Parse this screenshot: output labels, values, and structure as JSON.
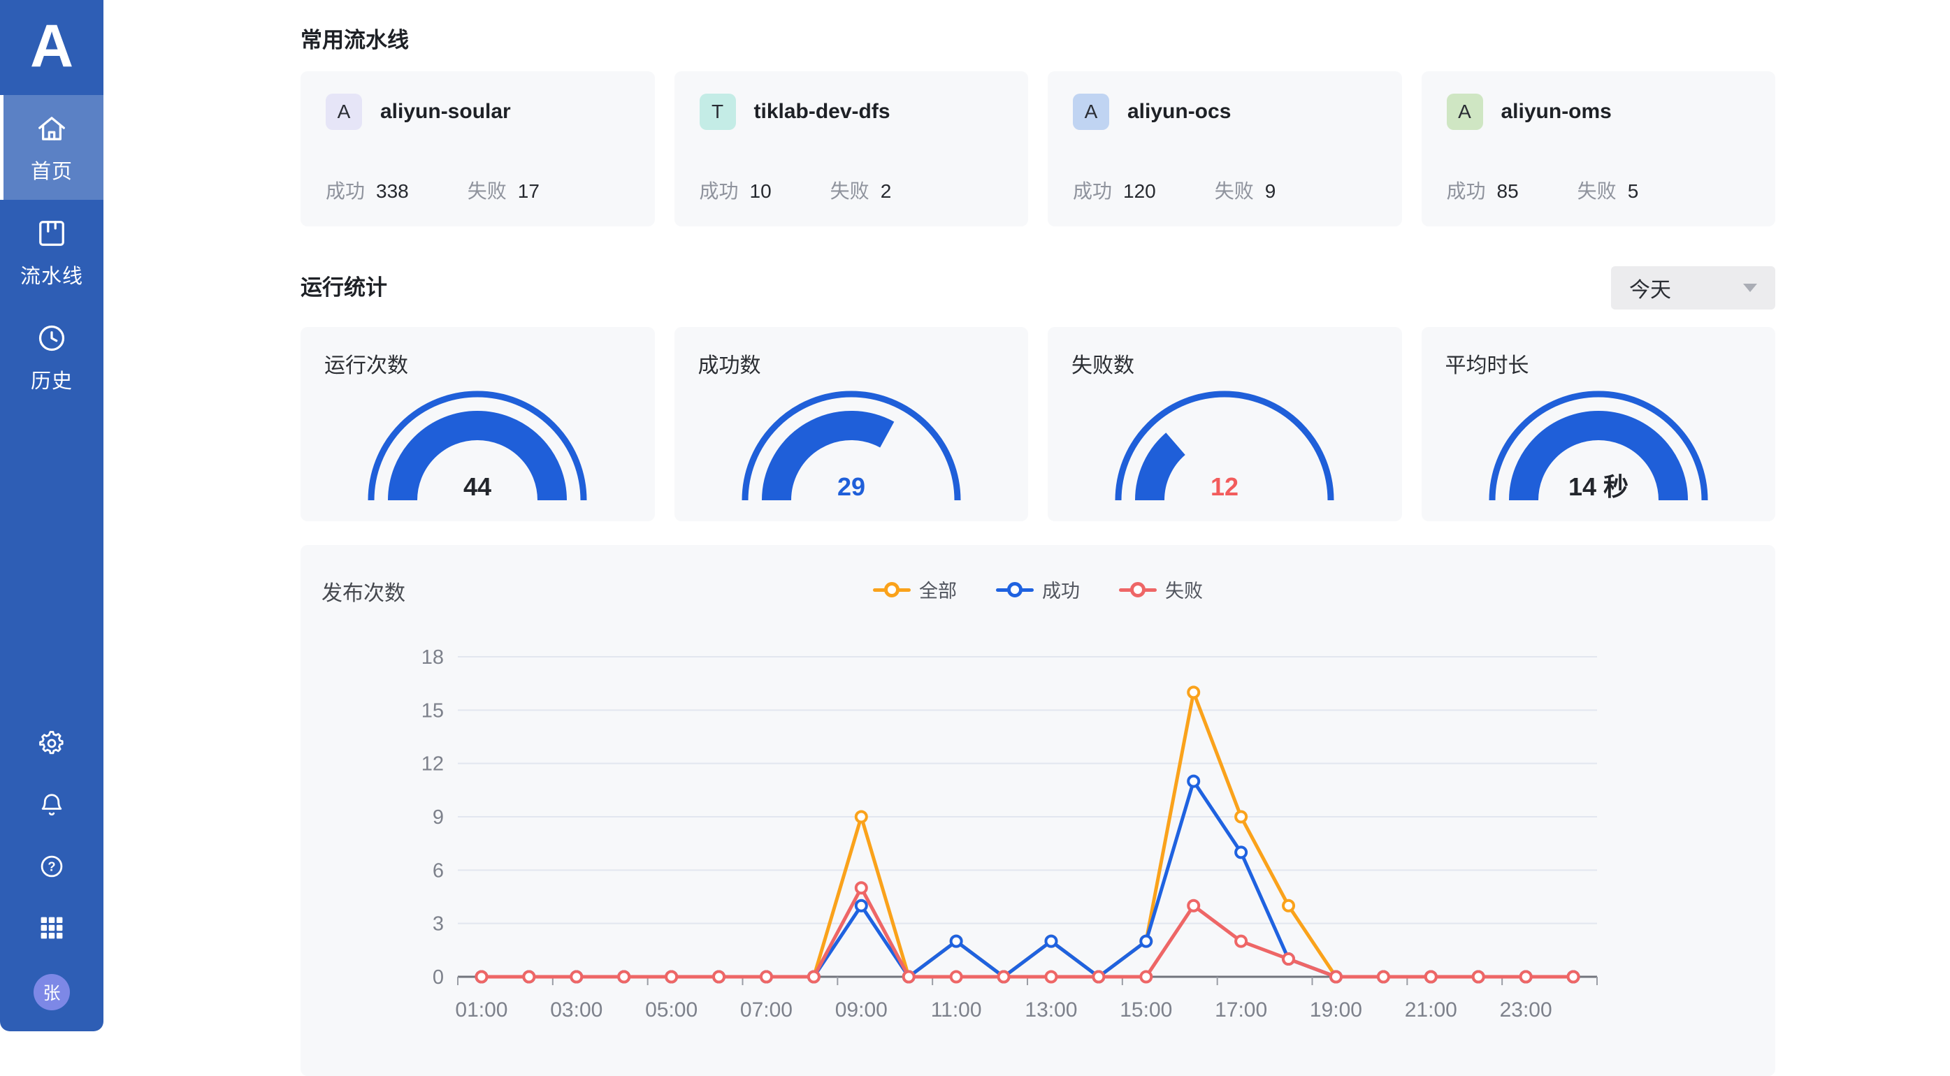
{
  "sidebar": {
    "logo_letter": "A",
    "items": [
      {
        "label": "首页",
        "active": true
      },
      {
        "label": "流水线",
        "active": false
      },
      {
        "label": "历史",
        "active": false
      }
    ],
    "avatar_text": "张"
  },
  "pipelines_section": {
    "title": "常用流水线",
    "success_label": "成功",
    "fail_label": "失败",
    "cards": [
      {
        "initial": "A",
        "name": "aliyun-soular",
        "success": "338",
        "fail": "17",
        "badge_bg": "#e6e5f7"
      },
      {
        "initial": "T",
        "name": "tiklab-dev-dfs",
        "success": "10",
        "fail": "2",
        "badge_bg": "#c4ece6"
      },
      {
        "initial": "A",
        "name": "aliyun-ocs",
        "success": "120",
        "fail": "9",
        "badge_bg": "#c0d4f2"
      },
      {
        "initial": "A",
        "name": "aliyun-oms",
        "success": "85",
        "fail": "5",
        "badge_bg": "#cfe6c3"
      }
    ]
  },
  "stats_section": {
    "title": "运行统计",
    "range_selected": "今天",
    "gauge_color": "#1f5fd9",
    "gauges": [
      {
        "label": "运行次数",
        "display": "44",
        "fraction": 1,
        "value_color": "#23262c"
      },
      {
        "label": "成功数",
        "display": "29",
        "fraction": 0.659,
        "value_color": "#1f5fd9"
      },
      {
        "label": "失败数",
        "display": "12",
        "fraction": 0.273,
        "value_color": "#f25c5c"
      },
      {
        "label": "平均时长",
        "display": "14 秒",
        "fraction": 1,
        "value_color": "#23262c"
      }
    ]
  },
  "chart_data": {
    "type": "line",
    "title": "发布次数",
    "x": [
      "01:00",
      "02:00",
      "03:00",
      "04:00",
      "05:00",
      "06:00",
      "07:00",
      "08:00",
      "09:00",
      "10:00",
      "11:00",
      "12:00",
      "13:00",
      "14:00",
      "15:00",
      "16:00",
      "17:00",
      "18:00",
      "19:00",
      "20:00",
      "21:00",
      "22:00",
      "23:00",
      "24:00"
    ],
    "x_labels_shown": [
      "01:00",
      "03:00",
      "05:00",
      "07:00",
      "09:00",
      "11:00",
      "13:00",
      "15:00",
      "17:00",
      "19:00",
      "21:00",
      "23:00"
    ],
    "ylim": [
      0,
      18
    ],
    "yticks": [
      0,
      3,
      6,
      9,
      12,
      15,
      18
    ],
    "grid": true,
    "legend_position": "top-center",
    "series": [
      {
        "name": "全部",
        "color": "#faa21b",
        "values": [
          0,
          0,
          0,
          0,
          0,
          0,
          0,
          0,
          9,
          0,
          2,
          0,
          2,
          0,
          2,
          16,
          9,
          4,
          0,
          0,
          0,
          0,
          0,
          0
        ]
      },
      {
        "name": "成功",
        "color": "#1f62e0",
        "values": [
          0,
          0,
          0,
          0,
          0,
          0,
          0,
          0,
          4,
          0,
          2,
          0,
          2,
          0,
          2,
          11,
          7,
          1,
          0,
          0,
          0,
          0,
          0,
          0
        ]
      },
      {
        "name": "失败",
        "color": "#ee6666",
        "values": [
          0,
          0,
          0,
          0,
          0,
          0,
          0,
          0,
          5,
          0,
          0,
          0,
          0,
          0,
          0,
          4,
          2,
          1,
          0,
          0,
          0,
          0,
          0,
          0
        ]
      }
    ]
  },
  "colors": {
    "page_bg": "#ffffff",
    "sidebar_bg": "#2e5eb5",
    "sidebar_active_bg": "#4d74be",
    "avatar_bg": "#7d88e6",
    "card_bg": "#f7f8fa",
    "select_bg": "#ececee",
    "accent_blue": "#1f5fd9",
    "fail_red": "#f25c5c",
    "grid_line": "#e2e6ef",
    "axis_line": "#71747c",
    "axis_label": "#7d818b"
  }
}
